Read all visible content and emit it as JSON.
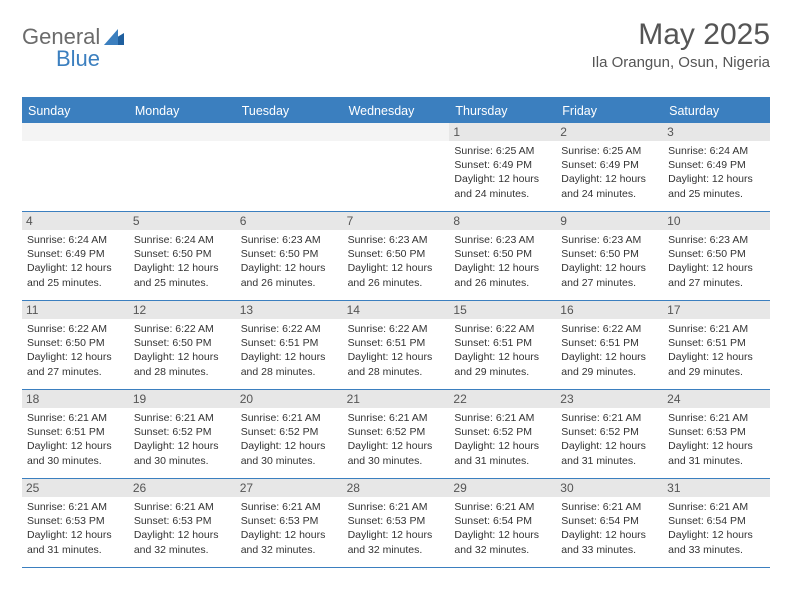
{
  "brand": {
    "general": "General",
    "blue": "Blue"
  },
  "title": "May 2025",
  "subtitle": "Ila Orangun, Osun, Nigeria",
  "colors": {
    "accent": "#3b7fbf",
    "dayStrip": "#e7e7e7",
    "text": "#333"
  },
  "dayHeaders": [
    "Sunday",
    "Monday",
    "Tuesday",
    "Wednesday",
    "Thursday",
    "Friday",
    "Saturday"
  ],
  "weeks": [
    [
      null,
      null,
      null,
      null,
      {
        "n": "1",
        "sr": "Sunrise: 6:25 AM",
        "ss": "Sunset: 6:49 PM",
        "d1": "Daylight: 12 hours",
        "d2": "and 24 minutes."
      },
      {
        "n": "2",
        "sr": "Sunrise: 6:25 AM",
        "ss": "Sunset: 6:49 PM",
        "d1": "Daylight: 12 hours",
        "d2": "and 24 minutes."
      },
      {
        "n": "3",
        "sr": "Sunrise: 6:24 AM",
        "ss": "Sunset: 6:49 PM",
        "d1": "Daylight: 12 hours",
        "d2": "and 25 minutes."
      }
    ],
    [
      {
        "n": "4",
        "sr": "Sunrise: 6:24 AM",
        "ss": "Sunset: 6:49 PM",
        "d1": "Daylight: 12 hours",
        "d2": "and 25 minutes."
      },
      {
        "n": "5",
        "sr": "Sunrise: 6:24 AM",
        "ss": "Sunset: 6:50 PM",
        "d1": "Daylight: 12 hours",
        "d2": "and 25 minutes."
      },
      {
        "n": "6",
        "sr": "Sunrise: 6:23 AM",
        "ss": "Sunset: 6:50 PM",
        "d1": "Daylight: 12 hours",
        "d2": "and 26 minutes."
      },
      {
        "n": "7",
        "sr": "Sunrise: 6:23 AM",
        "ss": "Sunset: 6:50 PM",
        "d1": "Daylight: 12 hours",
        "d2": "and 26 minutes."
      },
      {
        "n": "8",
        "sr": "Sunrise: 6:23 AM",
        "ss": "Sunset: 6:50 PM",
        "d1": "Daylight: 12 hours",
        "d2": "and 26 minutes."
      },
      {
        "n": "9",
        "sr": "Sunrise: 6:23 AM",
        "ss": "Sunset: 6:50 PM",
        "d1": "Daylight: 12 hours",
        "d2": "and 27 minutes."
      },
      {
        "n": "10",
        "sr": "Sunrise: 6:23 AM",
        "ss": "Sunset: 6:50 PM",
        "d1": "Daylight: 12 hours",
        "d2": "and 27 minutes."
      }
    ],
    [
      {
        "n": "11",
        "sr": "Sunrise: 6:22 AM",
        "ss": "Sunset: 6:50 PM",
        "d1": "Daylight: 12 hours",
        "d2": "and 27 minutes."
      },
      {
        "n": "12",
        "sr": "Sunrise: 6:22 AM",
        "ss": "Sunset: 6:50 PM",
        "d1": "Daylight: 12 hours",
        "d2": "and 28 minutes."
      },
      {
        "n": "13",
        "sr": "Sunrise: 6:22 AM",
        "ss": "Sunset: 6:51 PM",
        "d1": "Daylight: 12 hours",
        "d2": "and 28 minutes."
      },
      {
        "n": "14",
        "sr": "Sunrise: 6:22 AM",
        "ss": "Sunset: 6:51 PM",
        "d1": "Daylight: 12 hours",
        "d2": "and 28 minutes."
      },
      {
        "n": "15",
        "sr": "Sunrise: 6:22 AM",
        "ss": "Sunset: 6:51 PM",
        "d1": "Daylight: 12 hours",
        "d2": "and 29 minutes."
      },
      {
        "n": "16",
        "sr": "Sunrise: 6:22 AM",
        "ss": "Sunset: 6:51 PM",
        "d1": "Daylight: 12 hours",
        "d2": "and 29 minutes."
      },
      {
        "n": "17",
        "sr": "Sunrise: 6:21 AM",
        "ss": "Sunset: 6:51 PM",
        "d1": "Daylight: 12 hours",
        "d2": "and 29 minutes."
      }
    ],
    [
      {
        "n": "18",
        "sr": "Sunrise: 6:21 AM",
        "ss": "Sunset: 6:51 PM",
        "d1": "Daylight: 12 hours",
        "d2": "and 30 minutes."
      },
      {
        "n": "19",
        "sr": "Sunrise: 6:21 AM",
        "ss": "Sunset: 6:52 PM",
        "d1": "Daylight: 12 hours",
        "d2": "and 30 minutes."
      },
      {
        "n": "20",
        "sr": "Sunrise: 6:21 AM",
        "ss": "Sunset: 6:52 PM",
        "d1": "Daylight: 12 hours",
        "d2": "and 30 minutes."
      },
      {
        "n": "21",
        "sr": "Sunrise: 6:21 AM",
        "ss": "Sunset: 6:52 PM",
        "d1": "Daylight: 12 hours",
        "d2": "and 30 minutes."
      },
      {
        "n": "22",
        "sr": "Sunrise: 6:21 AM",
        "ss": "Sunset: 6:52 PM",
        "d1": "Daylight: 12 hours",
        "d2": "and 31 minutes."
      },
      {
        "n": "23",
        "sr": "Sunrise: 6:21 AM",
        "ss": "Sunset: 6:52 PM",
        "d1": "Daylight: 12 hours",
        "d2": "and 31 minutes."
      },
      {
        "n": "24",
        "sr": "Sunrise: 6:21 AM",
        "ss": "Sunset: 6:53 PM",
        "d1": "Daylight: 12 hours",
        "d2": "and 31 minutes."
      }
    ],
    [
      {
        "n": "25",
        "sr": "Sunrise: 6:21 AM",
        "ss": "Sunset: 6:53 PM",
        "d1": "Daylight: 12 hours",
        "d2": "and 31 minutes."
      },
      {
        "n": "26",
        "sr": "Sunrise: 6:21 AM",
        "ss": "Sunset: 6:53 PM",
        "d1": "Daylight: 12 hours",
        "d2": "and 32 minutes."
      },
      {
        "n": "27",
        "sr": "Sunrise: 6:21 AM",
        "ss": "Sunset: 6:53 PM",
        "d1": "Daylight: 12 hours",
        "d2": "and 32 minutes."
      },
      {
        "n": "28",
        "sr": "Sunrise: 6:21 AM",
        "ss": "Sunset: 6:53 PM",
        "d1": "Daylight: 12 hours",
        "d2": "and 32 minutes."
      },
      {
        "n": "29",
        "sr": "Sunrise: 6:21 AM",
        "ss": "Sunset: 6:54 PM",
        "d1": "Daylight: 12 hours",
        "d2": "and 32 minutes."
      },
      {
        "n": "30",
        "sr": "Sunrise: 6:21 AM",
        "ss": "Sunset: 6:54 PM",
        "d1": "Daylight: 12 hours",
        "d2": "and 33 minutes."
      },
      {
        "n": "31",
        "sr": "Sunrise: 6:21 AM",
        "ss": "Sunset: 6:54 PM",
        "d1": "Daylight: 12 hours",
        "d2": "and 33 minutes."
      }
    ]
  ]
}
